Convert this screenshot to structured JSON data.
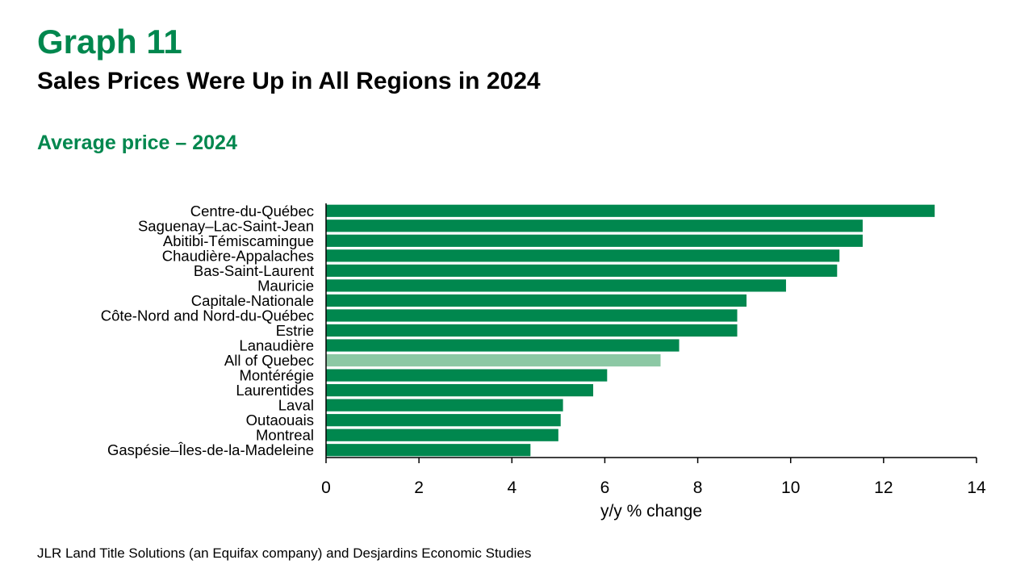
{
  "header": {
    "graph_number": "Graph 11",
    "title": "Sales Prices Were Up in All Regions in 2024",
    "subtitle": "Average price – 2024"
  },
  "footer": {
    "source": "JLR Land Title Solutions (an Equifax company) and Desjardins Economic Studies"
  },
  "colors": {
    "bar": "#00874e",
    "highlight_bar": "#8cc8a4",
    "heading_accent": "#00874e"
  },
  "chart_data": {
    "type": "bar",
    "orientation": "horizontal",
    "categories": [
      "Centre-du-Québec",
      "Saguenay–Lac-Saint-Jean",
      "Abitibi-Témiscamingue",
      "Chaudière-Appalaches",
      "Bas-Saint-Laurent",
      "Mauricie",
      "Capitale-Nationale",
      "Côte-Nord and Nord-du-Québec",
      "Estrie",
      "Lanaudière",
      "All of Quebec",
      "Montérégie",
      "Laurentides",
      "Laval",
      "Outaouais",
      "Montreal",
      "Gaspésie–Îles-de-la-Madeleine"
    ],
    "values": [
      13.1,
      11.55,
      11.55,
      11.05,
      11.0,
      9.9,
      9.05,
      8.85,
      8.85,
      7.6,
      7.2,
      6.05,
      5.75,
      5.1,
      5.05,
      5.0,
      4.4
    ],
    "highlight": [
      "All of Quebec"
    ],
    "xlabel": "y/y % change",
    "ylabel": "",
    "xlim": [
      0,
      14
    ],
    "xticks": [
      "0",
      "2",
      "4",
      "6",
      "8",
      "10",
      "12",
      "14"
    ],
    "grid": false,
    "legend": "none"
  }
}
